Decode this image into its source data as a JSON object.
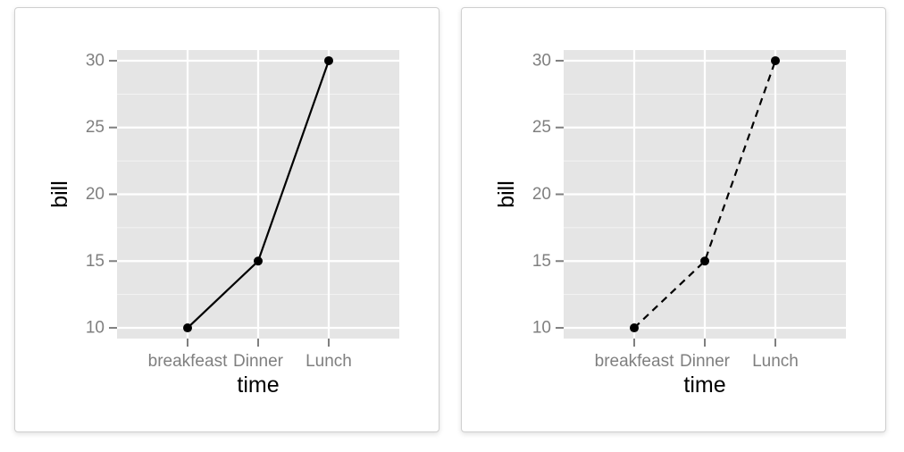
{
  "chart_data": [
    {
      "type": "line",
      "categories": [
        "breakfeast",
        "Dinner",
        "Lunch"
      ],
      "series": [
        {
          "values": [
            10,
            15,
            30
          ],
          "line_style": "solid",
          "color": "#000000"
        }
      ],
      "xlabel": "time",
      "ylabel": "bill",
      "ylim": [
        9.2,
        30.8
      ],
      "yticks": [
        10,
        15,
        20,
        25,
        30
      ],
      "y_tick_labels": [
        "10",
        "15",
        "20",
        "25",
        "30"
      ],
      "grid": true,
      "panel_background": "#e5e5e5",
      "grid_color": "#ffffff",
      "tick_color": "#7f7f7f"
    },
    {
      "type": "line",
      "categories": [
        "breakfeast",
        "Dinner",
        "Lunch"
      ],
      "series": [
        {
          "values": [
            10,
            15,
            30
          ],
          "line_style": "dashed",
          "color": "#000000"
        }
      ],
      "xlabel": "time",
      "ylabel": "bill",
      "ylim": [
        9.2,
        30.8
      ],
      "yticks": [
        10,
        15,
        20,
        25,
        30
      ],
      "y_tick_labels": [
        "10",
        "15",
        "20",
        "25",
        "30"
      ],
      "grid": true,
      "panel_background": "#e5e5e5",
      "grid_color": "#ffffff",
      "tick_color": "#7f7f7f"
    }
  ]
}
